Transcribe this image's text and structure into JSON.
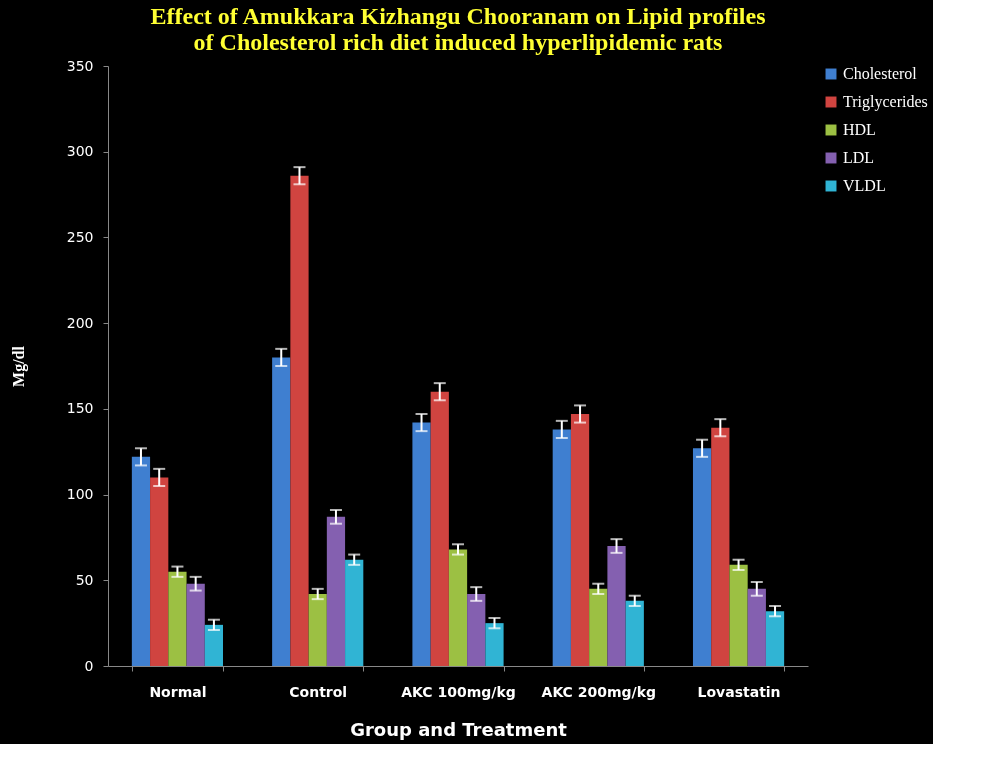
{
  "chart_data": {
    "type": "bar",
    "title": [
      "Effect of Amukkara Kizhangu Chooranam on Lipid profiles",
      "of Cholesterol rich diet induced hyperlipidemic rats"
    ],
    "xlabel": "Group and Treatment",
    "ylabel": "Mg/dl",
    "categories": [
      "Normal",
      "Control",
      "AKC 100mg/kg",
      "AKC 200mg/kg",
      "Lovastatin"
    ],
    "series": [
      {
        "name": "Cholesterol",
        "color": "#3f7fd0",
        "values": [
          122,
          180,
          142,
          138,
          127
        ],
        "errors": [
          5,
          5,
          5,
          5,
          5
        ]
      },
      {
        "name": "Triglycerides",
        "color": "#d04440",
        "values": [
          110,
          286,
          160,
          147,
          139
        ],
        "errors": [
          5,
          5,
          5,
          5,
          5
        ]
      },
      {
        "name": "HDL",
        "color": "#9cc043",
        "values": [
          55,
          42,
          68,
          45,
          59
        ],
        "errors": [
          3,
          3,
          3,
          3,
          3
        ]
      },
      {
        "name": "LDL",
        "color": "#8460b0",
        "values": [
          48,
          87,
          42,
          70,
          45
        ],
        "errors": [
          4,
          4,
          4,
          4,
          4
        ]
      },
      {
        "name": "VLDL",
        "color": "#30b4d4",
        "values": [
          24,
          62,
          25,
          38,
          32
        ],
        "errors": [
          3,
          3,
          3,
          3,
          3
        ]
      }
    ],
    "ylim": [
      0,
      350
    ],
    "yticks": [
      0,
      50,
      100,
      150,
      200,
      250,
      300,
      350
    ],
    "grid": false,
    "legend": "right"
  }
}
